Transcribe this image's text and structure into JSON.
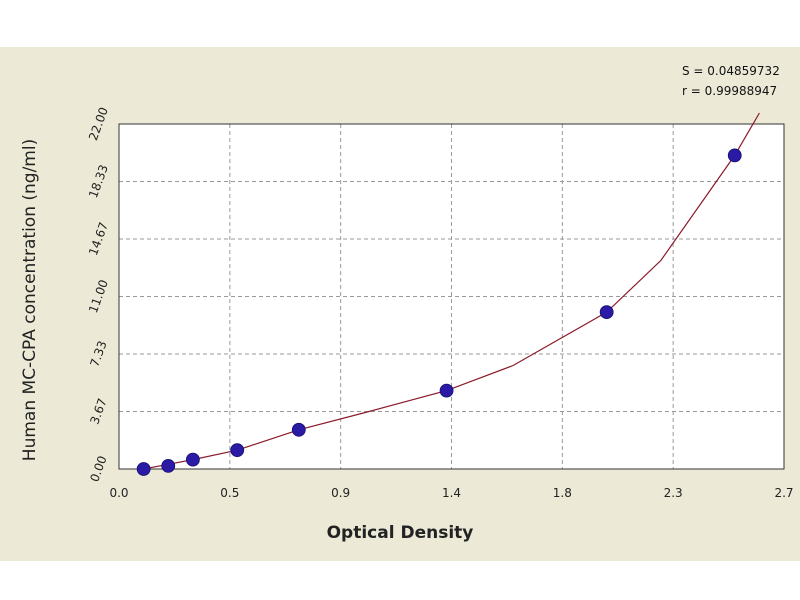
{
  "chart_data": {
    "type": "scatter",
    "title": "",
    "xlabel": "Optical Density",
    "ylabel": "Human MC-CPA concentration (ng/ml)",
    "xlim": [
      0.0,
      2.7
    ],
    "ylim": [
      0.0,
      22.0
    ],
    "xticks": [
      "0.0",
      "0.5",
      "0.9",
      "1.4",
      "1.8",
      "2.3",
      "2.7"
    ],
    "yticks": [
      "0.00",
      "3.67",
      "7.33",
      "11.00",
      "14.67",
      "18.33",
      "22.00"
    ],
    "grid": true,
    "stats": {
      "s": "S = 0.04859732",
      "r": "r = 0.99988947"
    },
    "series": [
      {
        "points": [
          {
            "x": 0.1,
            "y": 0.0
          },
          {
            "x": 0.2,
            "y": 0.2
          },
          {
            "x": 0.3,
            "y": 0.6
          },
          {
            "x": 0.48,
            "y": 1.2
          },
          {
            "x": 0.73,
            "y": 2.5
          },
          {
            "x": 1.33,
            "y": 5.0
          },
          {
            "x": 1.98,
            "y": 10.0
          },
          {
            "x": 2.5,
            "y": 20.0
          }
        ],
        "marker_color": "#2a1aa6"
      }
    ],
    "fit_curve": {
      "x": [
        0.0,
        0.1,
        0.2,
        0.3,
        0.48,
        0.73,
        1.0,
        1.33,
        1.6,
        1.98,
        2.2,
        2.5,
        2.6
      ],
      "y": [
        -0.4,
        0.0,
        0.3,
        0.6,
        1.2,
        2.5,
        3.6,
        5.0,
        6.6,
        10.0,
        13.3,
        20.0,
        22.7
      ],
      "color": "#8b1a2a"
    }
  }
}
